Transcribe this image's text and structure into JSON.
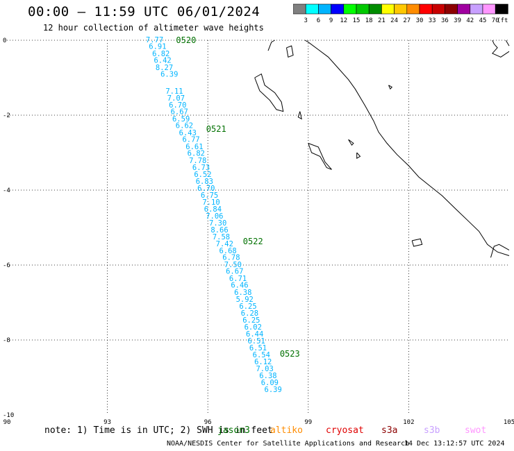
{
  "title": "00:00 – 11:59 UTC 06/01/2024",
  "subtitle": "12 hour collection of altimeter wave heights",
  "colorbar": {
    "colors": [
      "#808080",
      "#00ffff",
      "#00b4ff",
      "#0000ff",
      "#00ff00",
      "#00c800",
      "#008c00",
      "#ffff00",
      "#ffc800",
      "#ff8c00",
      "#ff0000",
      "#c80000",
      "#8c0000",
      "#a000a0",
      "#c8a0ff",
      "#ff96ff",
      "#000000"
    ],
    "labels": [
      "3",
      "6",
      "9",
      "12",
      "15",
      "18",
      "21",
      "24",
      "27",
      "30",
      "33",
      "36",
      "39",
      "42",
      "45",
      "70"
    ],
    "unit": "(ft)"
  },
  "map": {
    "lon_range": [
      90,
      105
    ],
    "lat_range": [
      -10,
      0
    ],
    "x_tick_labels": [
      "90",
      "93",
      "96",
      "99",
      "102",
      "105"
    ],
    "y_tick_labels": [
      "0",
      "-2",
      "-4",
      "-6",
      "-8",
      "-10"
    ],
    "pass_color": "#00b4ff",
    "time_color": "#007000",
    "wave_heights": [
      {
        "v": "7.77",
        "lon": 94.41,
        "lat": 0.0
      },
      {
        "v": "6.91",
        "lon": 94.5,
        "lat": -0.18
      },
      {
        "v": "6.82",
        "lon": 94.6,
        "lat": -0.37
      },
      {
        "v": "6.42",
        "lon": 94.65,
        "lat": -0.55
      },
      {
        "v": "8.27",
        "lon": 94.7,
        "lat": -0.74
      },
      {
        "v": "6.39",
        "lon": 94.85,
        "lat": -0.92
      },
      {
        "v": "7.11",
        "lon": 95.0,
        "lat": -1.37
      },
      {
        "v": "7.07",
        "lon": 95.05,
        "lat": -1.56
      },
      {
        "v": "6.70",
        "lon": 95.1,
        "lat": -1.74
      },
      {
        "v": "6.67",
        "lon": 95.15,
        "lat": -1.92
      },
      {
        "v": "6.59",
        "lon": 95.2,
        "lat": -2.11
      },
      {
        "v": "6.62",
        "lon": 95.3,
        "lat": -2.29
      },
      {
        "v": "6.43",
        "lon": 95.4,
        "lat": -2.48
      },
      {
        "v": "6.77",
        "lon": 95.5,
        "lat": -2.66
      },
      {
        "v": "6.61",
        "lon": 95.6,
        "lat": -2.85
      },
      {
        "v": "6.82",
        "lon": 95.65,
        "lat": -3.03
      },
      {
        "v": "7.78",
        "lon": 95.7,
        "lat": -3.22
      },
      {
        "v": "6.73",
        "lon": 95.8,
        "lat": -3.41
      },
      {
        "v": "6.52",
        "lon": 95.85,
        "lat": -3.59
      },
      {
        "v": "6.83",
        "lon": 95.9,
        "lat": -3.78
      },
      {
        "v": "6.70",
        "lon": 95.95,
        "lat": -3.96
      },
      {
        "v": "6.75",
        "lon": 96.05,
        "lat": -4.15
      },
      {
        "v": "7.10",
        "lon": 96.1,
        "lat": -4.33
      },
      {
        "v": "6.84",
        "lon": 96.15,
        "lat": -4.52
      },
      {
        "v": "7.06",
        "lon": 96.2,
        "lat": -4.7
      },
      {
        "v": "7.30",
        "lon": 96.3,
        "lat": -4.89
      },
      {
        "v": "8.66",
        "lon": 96.35,
        "lat": -5.07
      },
      {
        "v": "7.58",
        "lon": 96.4,
        "lat": -5.26
      },
      {
        "v": "7.42",
        "lon": 96.5,
        "lat": -5.44
      },
      {
        "v": "6.68",
        "lon": 96.6,
        "lat": -5.63
      },
      {
        "v": "6.78",
        "lon": 96.7,
        "lat": -5.81
      },
      {
        "v": "7.50",
        "lon": 96.75,
        "lat": -6.0
      },
      {
        "v": "6.67",
        "lon": 96.8,
        "lat": -6.18
      },
      {
        "v": "6.71",
        "lon": 96.9,
        "lat": -6.37
      },
      {
        "v": "6.46",
        "lon": 96.95,
        "lat": -6.55
      },
      {
        "v": "6.38",
        "lon": 97.05,
        "lat": -6.74
      },
      {
        "v": "5.92",
        "lon": 97.1,
        "lat": -6.93
      },
      {
        "v": "6.25",
        "lon": 97.2,
        "lat": -7.11
      },
      {
        "v": "6.28",
        "lon": 97.25,
        "lat": -7.3
      },
      {
        "v": "6.25",
        "lon": 97.3,
        "lat": -7.48
      },
      {
        "v": "6.02",
        "lon": 97.35,
        "lat": -7.67
      },
      {
        "v": "6.44",
        "lon": 97.4,
        "lat": -7.85
      },
      {
        "v": "6.51",
        "lon": 97.45,
        "lat": -8.04
      },
      {
        "v": "6.51",
        "lon": 97.5,
        "lat": -8.22
      },
      {
        "v": "6.54",
        "lon": 97.6,
        "lat": -8.41
      },
      {
        "v": "6.12",
        "lon": 97.65,
        "lat": -8.59
      },
      {
        "v": "7.03",
        "lon": 97.7,
        "lat": -8.78
      },
      {
        "v": "6.38",
        "lon": 97.8,
        "lat": -8.96
      },
      {
        "v": "6.09",
        "lon": 97.85,
        "lat": -9.15
      },
      {
        "v": "6.39",
        "lon": 97.95,
        "lat": -9.33
      }
    ],
    "time_labels": [
      {
        "t": "0520",
        "lon": 95.05,
        "lat": 0.0
      },
      {
        "t": "0521",
        "lon": 95.95,
        "lat": -2.37
      },
      {
        "t": "0522",
        "lon": 97.05,
        "lat": -5.37
      },
      {
        "t": "0523",
        "lon": 98.15,
        "lat": -8.37
      }
    ],
    "coastlines": [
      [
        [
          97.8,
          -0.28
        ],
        [
          97.9,
          -0.05
        ],
        [
          98.0,
          0.0
        ]
      ],
      [
        [
          98.9,
          0.0
        ],
        [
          99.0,
          -0.05
        ],
        [
          99.3,
          -0.25
        ],
        [
          99.6,
          -0.45
        ],
        [
          99.9,
          -0.75
        ],
        [
          100.2,
          -1.05
        ],
        [
          100.4,
          -1.3
        ],
        [
          100.7,
          -1.75
        ],
        [
          100.95,
          -2.15
        ],
        [
          101.1,
          -2.45
        ],
        [
          101.35,
          -2.75
        ],
        [
          101.65,
          -3.05
        ],
        [
          102.0,
          -3.35
        ],
        [
          102.3,
          -3.65
        ],
        [
          102.65,
          -3.9
        ],
        [
          103.0,
          -4.15
        ],
        [
          103.4,
          -4.5
        ],
        [
          103.75,
          -4.8
        ],
        [
          104.1,
          -5.1
        ],
        [
          104.35,
          -5.45
        ],
        [
          104.65,
          -5.65
        ],
        [
          105.0,
          -5.75
        ]
      ],
      [
        [
          104.45,
          -5.8
        ],
        [
          104.55,
          -5.5
        ],
        [
          104.7,
          -5.45
        ],
        [
          104.9,
          -5.55
        ],
        [
          105.0,
          -5.6
        ]
      ],
      [
        [
          104.5,
          0.0
        ],
        [
          104.55,
          -0.1
        ],
        [
          104.65,
          -0.2
        ],
        [
          104.5,
          -0.35
        ],
        [
          104.75,
          -0.45
        ],
        [
          105.0,
          -0.3
        ]
      ],
      [
        [
          104.9,
          0.0
        ],
        [
          105.0,
          -0.15
        ]
      ],
      [
        [
          97.4,
          -1.0
        ],
        [
          97.6,
          -0.9
        ],
        [
          97.7,
          -1.2
        ],
        [
          98.0,
          -1.4
        ],
        [
          98.2,
          -1.65
        ],
        [
          98.25,
          -1.9
        ],
        [
          98.05,
          -1.85
        ],
        [
          97.85,
          -1.6
        ],
        [
          97.55,
          -1.35
        ],
        [
          97.4,
          -1.0
        ]
      ],
      [
        [
          98.35,
          -0.2
        ],
        [
          98.5,
          -0.15
        ],
        [
          98.55,
          -0.4
        ],
        [
          98.4,
          -0.45
        ],
        [
          98.35,
          -0.2
        ]
      ],
      [
        [
          98.75,
          -1.9
        ],
        [
          98.8,
          -2.1
        ],
        [
          98.7,
          -2.05
        ],
        [
          98.75,
          -1.9
        ]
      ],
      [
        [
          99.0,
          -2.75
        ],
        [
          99.3,
          -2.85
        ],
        [
          99.5,
          -3.25
        ],
        [
          99.7,
          -3.45
        ],
        [
          99.55,
          -3.4
        ],
        [
          99.35,
          -3.1
        ],
        [
          99.1,
          -3.0
        ],
        [
          99.0,
          -2.75
        ]
      ],
      [
        [
          100.2,
          -2.65
        ],
        [
          100.35,
          -2.75
        ],
        [
          100.3,
          -2.8
        ],
        [
          100.2,
          -2.65
        ]
      ],
      [
        [
          100.45,
          -3.0
        ],
        [
          100.55,
          -3.1
        ],
        [
          100.45,
          -3.15
        ],
        [
          100.45,
          -3.0
        ]
      ],
      [
        [
          102.1,
          -5.35
        ],
        [
          102.35,
          -5.3
        ],
        [
          102.4,
          -5.45
        ],
        [
          102.15,
          -5.5
        ],
        [
          102.1,
          -5.35
        ]
      ],
      [
        [
          101.4,
          -1.2
        ],
        [
          101.5,
          -1.25
        ],
        [
          101.45,
          -1.3
        ],
        [
          101.4,
          -1.2
        ]
      ]
    ]
  },
  "note": "note:  1) Time is in UTC; 2) SWH is in feet",
  "satellites": [
    {
      "name": "jason3",
      "color": "#007000"
    },
    {
      "name": "altiko",
      "color": "#ff8c00"
    },
    {
      "name": "cryosat",
      "color": "#e00000"
    },
    {
      "name": "s3a",
      "color": "#8c0000"
    },
    {
      "name": "s3b",
      "color": "#c8a0ff"
    },
    {
      "name": "swot",
      "color": "#ff96ff"
    }
  ],
  "footer": "NOAA/NESDIS Center for Satellite Applications and Research",
  "generated": "14 Dec 13:12:57 UTC 2024"
}
